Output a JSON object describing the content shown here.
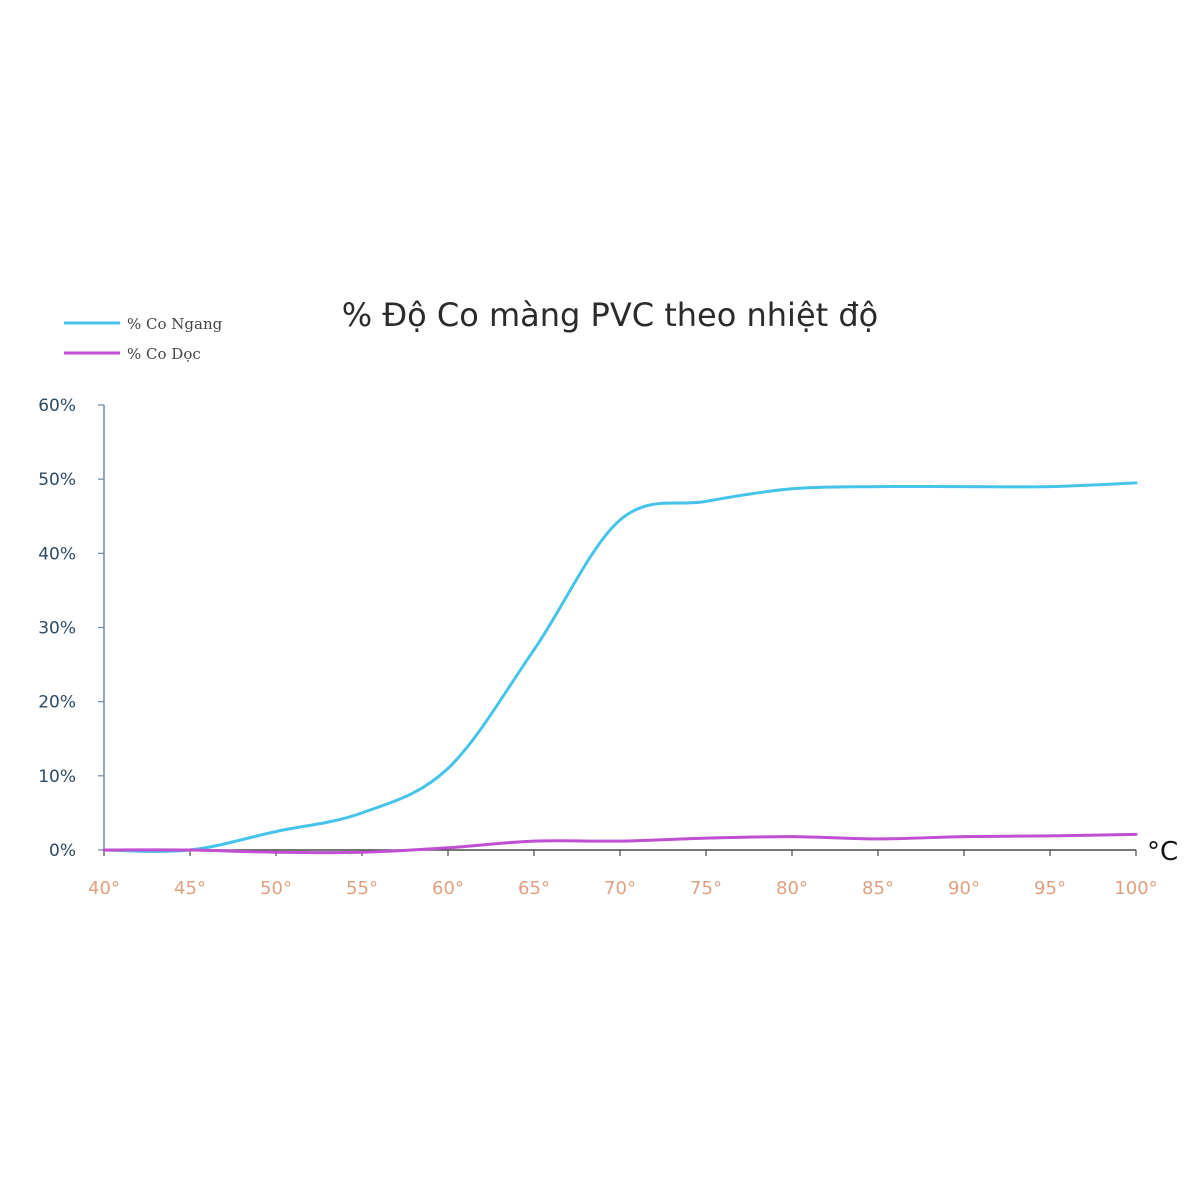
{
  "chart_data": {
    "type": "line",
    "title": "% Độ Co màng PVC theo nhiệt độ",
    "xlabel": "°C",
    "ylabel": "",
    "x": [
      40,
      45,
      50,
      55,
      60,
      65,
      70,
      75,
      80,
      85,
      90,
      95,
      100
    ],
    "x_tick_labels": [
      "40°",
      "45°",
      "50°",
      "55°",
      "60°",
      "65°",
      "70°",
      "75°",
      "80°",
      "85°",
      "90°",
      "95°",
      "100°"
    ],
    "y_ticks": [
      0,
      10,
      20,
      30,
      40,
      50,
      60
    ],
    "y_tick_labels": [
      "0%",
      "10%",
      "20%",
      "30%",
      "40%",
      "50%",
      "60%"
    ],
    "xlim": [
      40,
      100
    ],
    "ylim": [
      0,
      60
    ],
    "grid": false,
    "legend_position": "top-left",
    "series": [
      {
        "name": "% Co Ngang",
        "color": "#45c3ea",
        "values": [
          0,
          0,
          2.5,
          5,
          11,
          27,
          44.5,
          47,
          48.7,
          49,
          49,
          49,
          49.5
        ]
      },
      {
        "name": "% Co Dọc",
        "color": "#c04fd3",
        "values": [
          0,
          0,
          -0.3,
          -0.3,
          0.3,
          1.2,
          1.2,
          1.6,
          1.8,
          1.5,
          1.8,
          1.9,
          2.1
        ]
      }
    ],
    "colors": {
      "axis": "#6f8aa3",
      "x_tick_label": "#e0a080",
      "y_tick_label": "#2e4a62",
      "title": "#2b2b2b"
    }
  }
}
